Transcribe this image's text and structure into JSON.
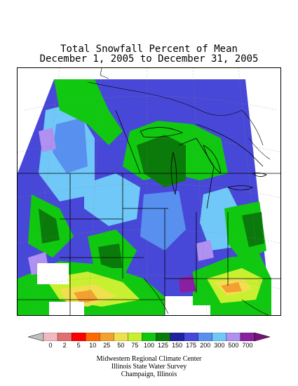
{
  "header": {
    "title_line1": "Total Snowfall Percent of Mean",
    "title_line2": "December 1, 2005 to December 31, 2005"
  },
  "legend": {
    "labels": [
      "0",
      "2",
      "5",
      "10",
      "25",
      "50",
      "75",
      "100",
      "125",
      "150",
      "175",
      "200",
      "300",
      "500",
      "700"
    ],
    "colors": [
      "#f4b8c0",
      "#e07070",
      "#ff0000",
      "#ff6a00",
      "#f4a030",
      "#f0e050",
      "#c8f030",
      "#10c810",
      "#0a7a0a",
      "#2020a0",
      "#4848d8",
      "#5890f0",
      "#70c8f8",
      "#b090f0",
      "#8820a0"
    ],
    "under_color": "#c0c0c0",
    "over_color": "#7a107a"
  },
  "credits": {
    "line1": "Midwestern Regional Climate Center",
    "line2": "Illinois State Water Survey",
    "line3": "Champaign, Illinois"
  }
}
